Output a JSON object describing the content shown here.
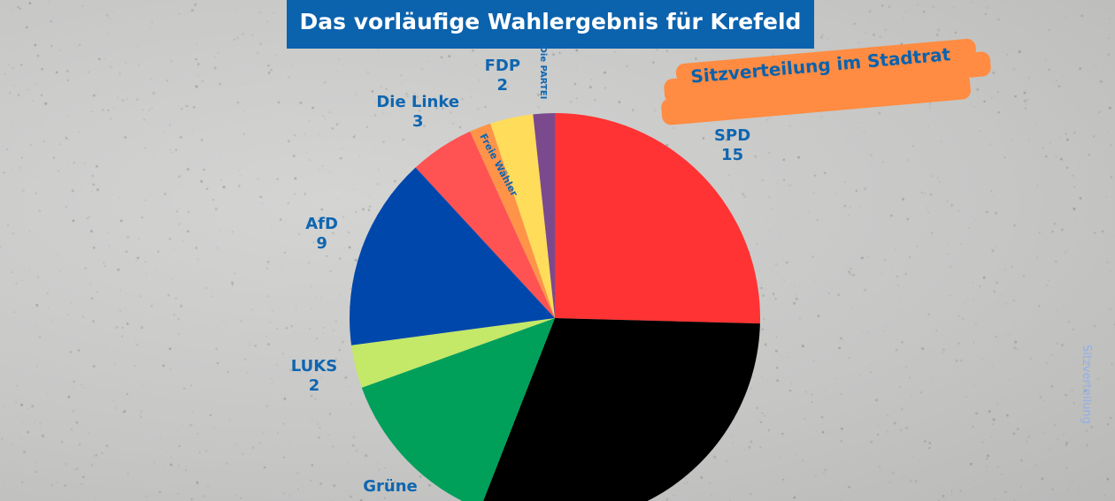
{
  "title": "Das vorläufige Wahlergebnis für Krefeld",
  "subtitle": "Sitzverteilung im Stadtrat",
  "side_text": "Sitzverteilung",
  "colors": {
    "title_bg": "#0b62ad",
    "label": "#0f66b0",
    "brush": "#ff8c42"
  },
  "chart_data": {
    "type": "pie",
    "title": "Das vorläufige Wahlergebnis für Krefeld",
    "start": "top",
    "direction": "clockwise",
    "slices": [
      {
        "party": "SPD",
        "value": 15,
        "label": "SPD",
        "value_label": "15",
        "color": "#ff3333"
      },
      {
        "party": "",
        "value": 18,
        "label": "",
        "value_label": "",
        "color": "#000000"
      },
      {
        "party": "Grüne",
        "value": 8,
        "label": "Grüne",
        "value_label": "",
        "color": "#00a05a"
      },
      {
        "party": "LUKS",
        "value": 2,
        "label": "LUKS",
        "value_label": "2",
        "color": "#c4e868"
      },
      {
        "party": "AfD",
        "value": 9,
        "label": "AfD",
        "value_label": "9",
        "color": "#0047ab"
      },
      {
        "party": "Die Linke",
        "value": 3,
        "label": "Die Linke",
        "value_label": "3",
        "color": "#ff5252"
      },
      {
        "party": "Freie Wähler",
        "value": 1,
        "label": "Freie Wähler",
        "value_label": "",
        "color": "#ff9448"
      },
      {
        "party": "FDP",
        "value": 2,
        "label": "FDP",
        "value_label": "2",
        "color": "#ffdc5a"
      },
      {
        "party": "Die PARTEI",
        "value": 1,
        "label": "Die PARTEI",
        "value_label": "",
        "color": "#7b4a8c"
      }
    ]
  }
}
